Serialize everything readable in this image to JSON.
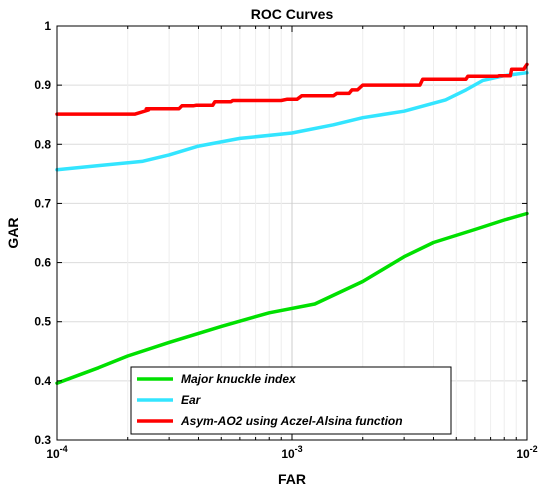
{
  "chart_data": {
    "type": "line",
    "title": "ROC Curves",
    "xlabel": "FAR",
    "ylabel": "GAR",
    "xscale": "log",
    "xlim": [
      0.0001,
      0.01
    ],
    "ylim": [
      0.3,
      1.0
    ],
    "grid": true,
    "legend_position": "bottom",
    "x_ticks": [
      {
        "value": 0.0001,
        "base": "10",
        "exp": "-4"
      },
      {
        "value": 0.001,
        "base": "10",
        "exp": "-3"
      },
      {
        "value": 0.01,
        "base": "10",
        "exp": "-2"
      }
    ],
    "y_ticks": [
      {
        "value": 0.3,
        "label": "0.3"
      },
      {
        "value": 0.4,
        "label": "0.4"
      },
      {
        "value": 0.5,
        "label": "0.5"
      },
      {
        "value": 0.6,
        "label": "0.6"
      },
      {
        "value": 0.7,
        "label": "0.7"
      },
      {
        "value": 0.8,
        "label": "0.8"
      },
      {
        "value": 0.9,
        "label": "0.9"
      },
      {
        "value": 1.0,
        "label": "1"
      }
    ],
    "series": [
      {
        "name": "Major knuckle index",
        "color": "#00e000",
        "x": [
          0.0001,
          0.00015,
          0.0002,
          0.0003,
          0.0005,
          0.0008,
          0.00125,
          0.002,
          0.003,
          0.004,
          0.006,
          0.008,
          0.01
        ],
        "y": [
          0.396,
          0.422,
          0.442,
          0.465,
          0.492,
          0.515,
          0.53,
          0.568,
          0.61,
          0.634,
          0.656,
          0.672,
          0.683
        ]
      },
      {
        "name": "Ear",
        "color": "#33e5ff",
        "x": [
          0.0001,
          0.00015,
          0.00023,
          0.0003,
          0.0004,
          0.0006,
          0.001,
          0.0015,
          0.002,
          0.003,
          0.0045,
          0.0055,
          0.0065,
          0.008,
          0.01
        ],
        "y": [
          0.757,
          0.764,
          0.771,
          0.782,
          0.797,
          0.81,
          0.819,
          0.833,
          0.845,
          0.856,
          0.875,
          0.892,
          0.908,
          0.916,
          0.921
        ]
      },
      {
        "name": "Asym-AO2 using Aczel-Alsina  function",
        "color": "#ff0000",
        "x": [
          0.0001,
          0.000215,
          0.000245,
          0.00024,
          0.00033,
          0.00034,
          0.00038,
          0.00039,
          0.00046,
          0.00047,
          0.00055,
          0.00056,
          0.0009,
          0.00095,
          0.00105,
          0.0011,
          0.0015,
          0.00155,
          0.00175,
          0.0018,
          0.0019,
          0.002,
          0.0035,
          0.0036,
          0.0055,
          0.0056,
          0.0075,
          0.0076,
          0.0085,
          0.0086,
          0.0097,
          0.0098,
          0.01
        ],
        "y": [
          0.851,
          0.851,
          0.858,
          0.86,
          0.86,
          0.865,
          0.865,
          0.866,
          0.866,
          0.872,
          0.872,
          0.874,
          0.874,
          0.876,
          0.876,
          0.882,
          0.882,
          0.886,
          0.886,
          0.892,
          0.892,
          0.9,
          0.9,
          0.91,
          0.91,
          0.915,
          0.915,
          0.916,
          0.916,
          0.927,
          0.927,
          0.93,
          0.935
        ]
      }
    ]
  }
}
